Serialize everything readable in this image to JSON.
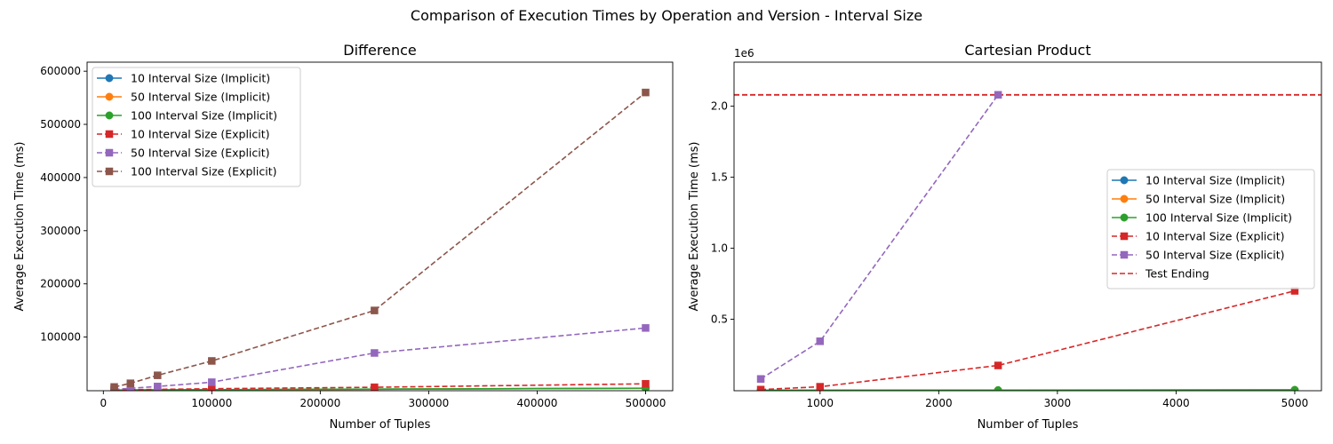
{
  "figure": {
    "suptitle": "Comparison of Execution Times by Operation and Version - Interval Size"
  },
  "chart_data": [
    {
      "type": "line",
      "title": "Difference",
      "xlabel": "Number of Tuples",
      "ylabel": "Average Execution Time (ms)",
      "xlim": [
        -15000,
        525000
      ],
      "ylim": [
        -1000,
        617000
      ],
      "xticks": [
        0,
        100000,
        200000,
        300000,
        400000,
        500000
      ],
      "xtick_labels": [
        "0",
        "100000",
        "200000",
        "300000",
        "400000",
        "500000"
      ],
      "yticks": [
        100000,
        200000,
        300000,
        400000,
        500000,
        600000
      ],
      "ytick_labels": [
        "100000",
        "200000",
        "300000",
        "400000",
        "500000",
        "600000"
      ],
      "grid": false,
      "legend_position": "top-left",
      "series": [
        {
          "name": "10 Interval Size (Implicit)",
          "color": "#1f77b4",
          "linestyle": "solid",
          "marker": "circle",
          "x": [
            10000,
            25000,
            50000,
            100000,
            250000,
            500000
          ],
          "y": [
            200,
            300,
            500,
            800,
            1800,
            3500
          ]
        },
        {
          "name": "50 Interval Size (Implicit)",
          "color": "#ff7f0e",
          "linestyle": "solid",
          "marker": "circle",
          "x": [
            10000,
            25000,
            50000,
            100000,
            250000,
            500000
          ],
          "y": [
            200,
            300,
            500,
            800,
            1900,
            3600
          ]
        },
        {
          "name": "100 Interval Size (Implicit)",
          "color": "#2ca02c",
          "linestyle": "solid",
          "marker": "circle",
          "x": [
            10000,
            25000,
            50000,
            100000,
            250000,
            500000
          ],
          "y": [
            200,
            300,
            500,
            900,
            2000,
            3800
          ]
        },
        {
          "name": "10 Interval Size (Explicit)",
          "color": "#d62728",
          "linestyle": "dashed",
          "marker": "square",
          "x": [
            10000,
            25000,
            50000,
            100000,
            250000,
            500000
          ],
          "y": [
            400,
            800,
            1500,
            2800,
            5500,
            12000
          ]
        },
        {
          "name": "50 Interval Size (Explicit)",
          "color": "#9467bd",
          "linestyle": "dashed",
          "marker": "square",
          "x": [
            10000,
            25000,
            50000,
            100000,
            250000,
            500000
          ],
          "y": [
            1500,
            3500,
            7000,
            15000,
            70000,
            117000
          ]
        },
        {
          "name": "100 Interval Size (Explicit)",
          "color": "#8c564b",
          "linestyle": "dashed",
          "marker": "square",
          "x": [
            10000,
            25000,
            50000,
            100000,
            250000,
            500000
          ],
          "y": [
            6000,
            13000,
            28000,
            55000,
            150000,
            560000
          ]
        }
      ],
      "hlines": []
    },
    {
      "type": "line",
      "title": "Cartesian Product",
      "xlabel": "Number of Tuples",
      "ylabel": "Average Execution Time (ms)",
      "offset_text": "1e6",
      "xlim": [
        275,
        5225
      ],
      "ylim": [
        -3000,
        2310000
      ],
      "xticks": [
        1000,
        2000,
        3000,
        4000,
        5000
      ],
      "xtick_labels": [
        "1000",
        "2000",
        "3000",
        "4000",
        "5000"
      ],
      "yticks": [
        500000,
        1000000,
        1500000,
        2000000
      ],
      "ytick_labels": [
        "0.5",
        "1.0",
        "1.5",
        "2.0"
      ],
      "grid": false,
      "legend_position": "center-right",
      "series": [
        {
          "name": "10 Interval Size (Implicit)",
          "color": "#1f77b4",
          "linestyle": "solid",
          "marker": "circle",
          "x": [
            500,
            1000,
            2500,
            5000
          ],
          "y": [
            100,
            200,
            600,
            2000
          ]
        },
        {
          "name": "50 Interval Size (Implicit)",
          "color": "#ff7f0e",
          "linestyle": "solid",
          "marker": "circle",
          "x": [
            500,
            1000,
            2500,
            5000
          ],
          "y": [
            100,
            300,
            800,
            2500
          ]
        },
        {
          "name": "100 Interval Size (Implicit)",
          "color": "#2ca02c",
          "linestyle": "solid",
          "marker": "circle",
          "x": [
            500,
            1000,
            2500,
            5000
          ],
          "y": [
            200,
            400,
            1000,
            3000
          ]
        },
        {
          "name": "10 Interval Size (Explicit)",
          "color": "#d62728",
          "linestyle": "dashed",
          "marker": "square",
          "x": [
            500,
            1000,
            2500,
            5000
          ],
          "y": [
            5000,
            25000,
            175000,
            700000
          ]
        },
        {
          "name": "50 Interval Size (Explicit)",
          "color": "#9467bd",
          "linestyle": "dashed",
          "marker": "square",
          "x": [
            500,
            1000,
            2500
          ],
          "y": [
            80000,
            345000,
            2080000
          ]
        }
      ],
      "hlines": [
        {
          "name": "Test Ending",
          "y": 2080000,
          "color": "#d62728",
          "linestyle": "dashed"
        }
      ]
    }
  ]
}
